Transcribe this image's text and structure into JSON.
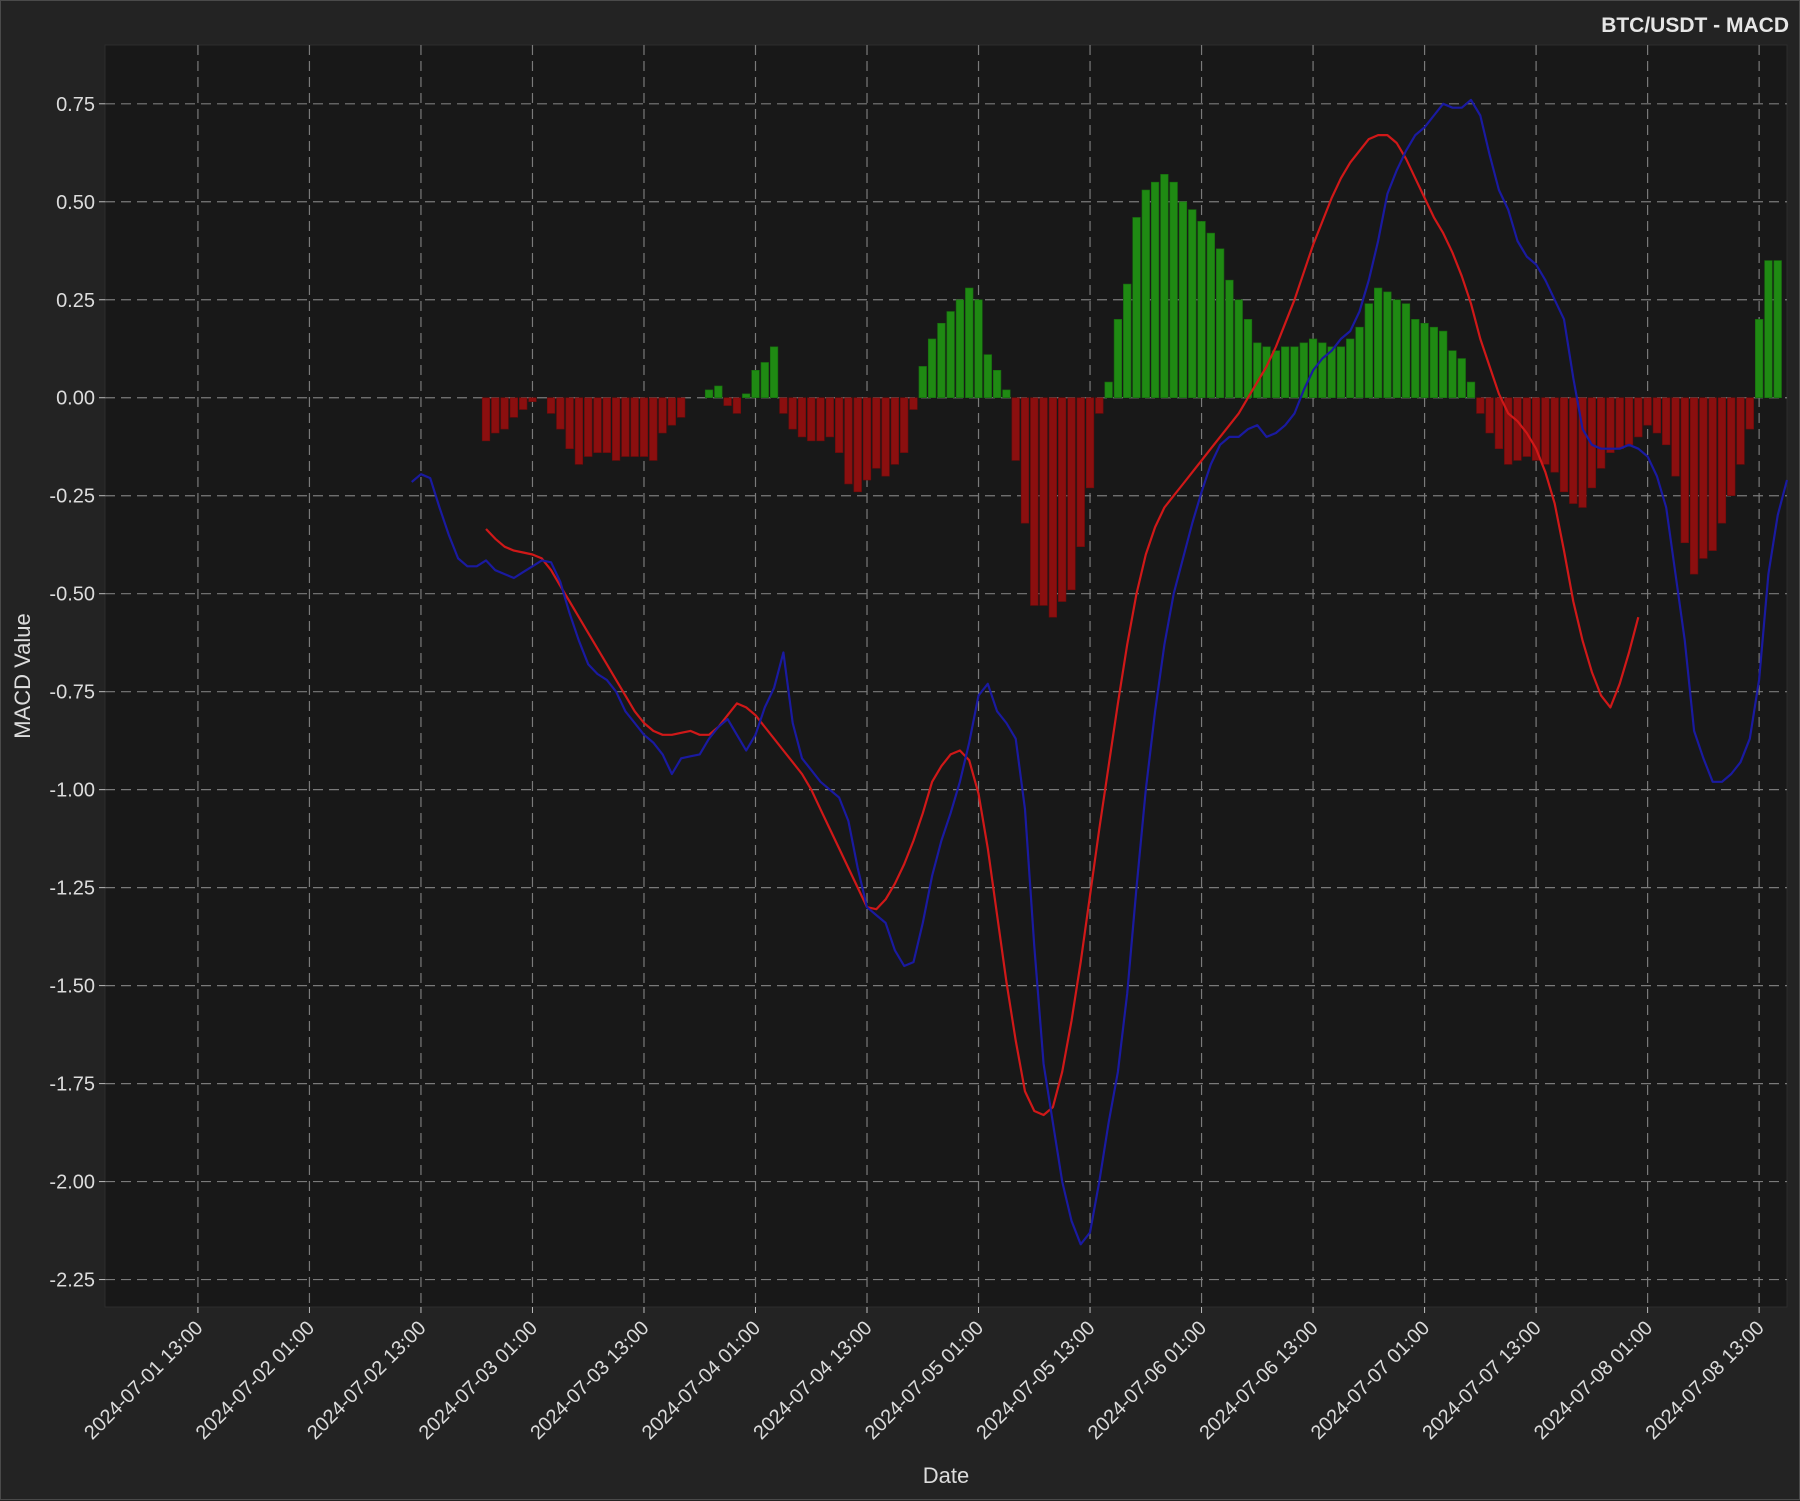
{
  "chart_data": {
    "type": "bar+line",
    "title": "BTC/USDT - MACD",
    "xlabel": "Date",
    "ylabel": "MACD Value",
    "ylim": [
      -2.32,
      0.9
    ],
    "xlim": [
      "2024-07-01 03:00",
      "2024-07-08 16:00"
    ],
    "y_ticks": [
      0.75,
      0.5,
      0.25,
      0.0,
      -0.25,
      -0.5,
      -0.75,
      -1.0,
      -1.25,
      -1.5,
      -1.75,
      -2.0,
      -2.25
    ],
    "y_tick_labels": [
      "0.75",
      "0.50",
      "0.25",
      "0.00",
      "-0.25",
      "-0.50",
      "-0.75",
      "-1.00",
      "-1.25",
      "-1.50",
      "-1.75",
      "-2.00",
      "-2.25"
    ],
    "x_ticks": [
      "2024-07-01 13:00",
      "2024-07-02 01:00",
      "2024-07-02 13:00",
      "2024-07-03 01:00",
      "2024-07-03 13:00",
      "2024-07-04 01:00",
      "2024-07-04 13:00",
      "2024-07-05 01:00",
      "2024-07-05 13:00",
      "2024-07-06 01:00",
      "2024-07-06 13:00",
      "2024-07-07 01:00",
      "2024-07-07 13:00",
      "2024-07-08 01:00",
      "2024-07-08 13:00"
    ],
    "grid": true,
    "colors": {
      "macd": "#1a1aa0",
      "signal": "#d01818",
      "hist_positive": "#1f8a13",
      "hist_negative": "#8b0f0f",
      "plot_bg": "#181818",
      "figure_bg": "#232323",
      "grid": "#7a7a7a",
      "text": "#dcdcdc"
    },
    "macd_line": {
      "start": "2024-07-02 12:00",
      "step_hours": 1,
      "values": [
        -0.215,
        -0.195,
        -0.205,
        -0.28,
        -0.35,
        -0.41,
        -0.43,
        -0.43,
        -0.415,
        -0.44,
        -0.45,
        -0.46,
        -0.445,
        -0.43,
        -0.415,
        -0.42,
        -0.47,
        -0.55,
        -0.62,
        -0.68,
        -0.705,
        -0.72,
        -0.75,
        -0.8,
        -0.83,
        -0.86,
        -0.88,
        -0.91,
        -0.96,
        -0.92,
        -0.915,
        -0.91,
        -0.87,
        -0.84,
        -0.82,
        -0.86,
        -0.9,
        -0.86,
        -0.79,
        -0.74,
        -0.65,
        -0.83,
        -0.92,
        -0.95,
        -0.98,
        -1.0,
        -1.02,
        -1.08,
        -1.2,
        -1.3,
        -1.32,
        -1.34,
        -1.41,
        -1.45,
        -1.44,
        -1.34,
        -1.22,
        -1.13,
        -1.06,
        -0.98,
        -0.88,
        -0.76,
        -0.73,
        -0.8,
        -0.83,
        -0.87,
        -1.05,
        -1.4,
        -1.7,
        -1.85,
        -2.0,
        -2.1,
        -2.16,
        -2.13,
        -2.0,
        -1.85,
        -1.72,
        -1.52,
        -1.25,
        -1.0,
        -0.8,
        -0.63,
        -0.5,
        -0.41,
        -0.32,
        -0.24,
        -0.17,
        -0.12,
        -0.1,
        -0.1,
        -0.08,
        -0.07,
        -0.1,
        -0.09,
        -0.07,
        -0.04,
        0.02,
        0.07,
        0.1,
        0.12,
        0.15,
        0.17,
        0.22,
        0.3,
        0.4,
        0.52,
        0.58,
        0.63,
        0.67,
        0.69,
        0.72,
        0.75,
        0.74,
        0.74,
        0.76,
        0.72,
        0.62,
        0.53,
        0.48,
        0.4,
        0.36,
        0.34,
        0.3,
        0.25,
        0.2,
        0.05,
        -0.08,
        -0.12,
        -0.13,
        -0.13,
        -0.13,
        -0.12,
        -0.13,
        -0.15,
        -0.2,
        -0.28,
        -0.45,
        -0.62,
        -0.85,
        -0.92,
        -0.98,
        -0.98,
        -0.96,
        -0.93,
        -0.87,
        -0.72,
        -0.45,
        -0.3,
        -0.21
      ]
    },
    "signal_line": {
      "start": "2024-07-02 20:00",
      "step_hours": 1,
      "values": [
        -0.335,
        -0.36,
        -0.38,
        -0.39,
        -0.395,
        -0.4,
        -0.41,
        -0.44,
        -0.48,
        -0.52,
        -0.56,
        -0.6,
        -0.64,
        -0.68,
        -0.72,
        -0.76,
        -0.8,
        -0.83,
        -0.85,
        -0.86,
        -0.86,
        -0.855,
        -0.85,
        -0.86,
        -0.86,
        -0.84,
        -0.81,
        -0.78,
        -0.79,
        -0.81,
        -0.84,
        -0.87,
        -0.9,
        -0.93,
        -0.96,
        -1.0,
        -1.05,
        -1.1,
        -1.15,
        -1.2,
        -1.25,
        -1.3,
        -1.305,
        -1.28,
        -1.24,
        -1.19,
        -1.13,
        -1.06,
        -0.98,
        -0.94,
        -0.91,
        -0.9,
        -0.925,
        -1.01,
        -1.15,
        -1.32,
        -1.49,
        -1.64,
        -1.77,
        -1.82,
        -1.83,
        -1.81,
        -1.72,
        -1.59,
        -1.44,
        -1.27,
        -1.1,
        -0.94,
        -0.78,
        -0.63,
        -0.5,
        -0.4,
        -0.33,
        -0.28,
        -0.25,
        -0.22,
        -0.19,
        -0.16,
        -0.13,
        -0.1,
        -0.07,
        -0.04,
        0.0,
        0.04,
        0.08,
        0.13,
        0.19,
        0.25,
        0.32,
        0.39,
        0.45,
        0.51,
        0.56,
        0.6,
        0.63,
        0.66,
        0.67,
        0.67,
        0.65,
        0.61,
        0.56,
        0.51,
        0.46,
        0.42,
        0.37,
        0.31,
        0.24,
        0.15,
        0.08,
        0.01,
        -0.04,
        -0.06,
        -0.09,
        -0.13,
        -0.19,
        -0.27,
        -0.39,
        -0.52,
        -0.62,
        -0.7,
        -0.76,
        -0.79,
        -0.73,
        -0.65,
        -0.56
      ]
    },
    "histogram": {
      "start": "2024-07-02 20:00",
      "step_hours": 1,
      "values": [
        -0.11,
        -0.09,
        -0.08,
        -0.05,
        -0.03,
        -0.01,
        0.0,
        -0.04,
        -0.08,
        -0.13,
        -0.17,
        -0.15,
        -0.14,
        -0.14,
        -0.16,
        -0.15,
        -0.15,
        -0.15,
        -0.16,
        -0.09,
        -0.07,
        -0.05,
        0.0,
        0.0,
        0.02,
        0.03,
        -0.02,
        -0.04,
        0.01,
        0.07,
        0.09,
        0.13,
        -0.04,
        -0.08,
        -0.1,
        -0.11,
        -0.11,
        -0.1,
        -0.14,
        -0.22,
        -0.24,
        -0.21,
        -0.18,
        -0.2,
        -0.17,
        -0.14,
        -0.03,
        0.08,
        0.15,
        0.19,
        0.22,
        0.25,
        0.28,
        0.25,
        0.11,
        0.07,
        0.02,
        -0.16,
        -0.32,
        -0.53,
        -0.53,
        -0.56,
        -0.52,
        -0.49,
        -0.38,
        -0.23,
        -0.04,
        0.04,
        0.2,
        0.29,
        0.46,
        0.53,
        0.55,
        0.57,
        0.55,
        0.5,
        0.48,
        0.45,
        0.42,
        0.38,
        0.3,
        0.25,
        0.2,
        0.14,
        0.13,
        0.12,
        0.13,
        0.13,
        0.14,
        0.15,
        0.14,
        0.13,
        0.13,
        0.15,
        0.18,
        0.24,
        0.28,
        0.27,
        0.25,
        0.24,
        0.2,
        0.19,
        0.18,
        0.17,
        0.12,
        0.1,
        0.04,
        -0.04,
        -0.09,
        -0.13,
        -0.17,
        -0.16,
        -0.15,
        -0.16,
        -0.17,
        -0.19,
        -0.24,
        -0.27,
        -0.28,
        -0.23,
        -0.18,
        -0.14,
        -0.13,
        -0.12,
        -0.1,
        -0.07,
        -0.09,
        -0.12,
        -0.2,
        -0.37,
        -0.45,
        -0.41,
        -0.39,
        -0.32,
        -0.25,
        -0.17,
        -0.08,
        0.2,
        0.35,
        0.35
      ]
    }
  }
}
